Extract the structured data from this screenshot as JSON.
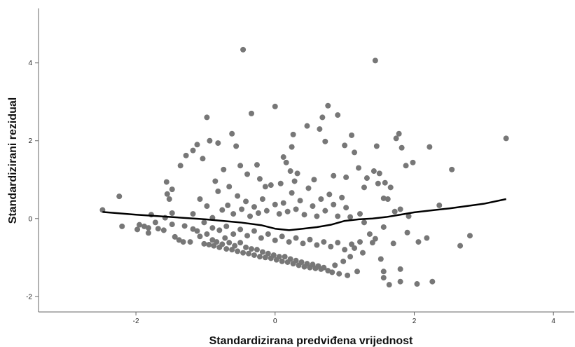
{
  "chart_data": {
    "type": "scatter",
    "title": "",
    "xlabel": "Standardizirana predviđena vrijednost",
    "ylabel": "Standardizirani rezidual",
    "xlim": [
      -3.4,
      4.3
    ],
    "ylim": [
      -2.4,
      5.4
    ],
    "x_ticks": [
      -2,
      0,
      2,
      4
    ],
    "x_tick_labels": [
      "-2",
      "0",
      "2",
      "4"
    ],
    "y_ticks": [
      -2,
      0,
      2,
      4
    ],
    "y_tick_labels": [
      "-2",
      "0",
      "2",
      "4"
    ],
    "grid": false,
    "point_color": "#777777",
    "line_color": "#000000",
    "series": [
      {
        "type": "scatter",
        "points": [
          [
            -2.48,
            0.22
          ],
          [
            -2.24,
            0.57
          ],
          [
            -2.2,
            -0.2
          ],
          [
            -1.95,
            -0.16
          ],
          [
            -1.98,
            -0.28
          ],
          [
            -1.88,
            -0.2
          ],
          [
            -1.82,
            -0.24
          ],
          [
            -1.78,
            0.1
          ],
          [
            -1.82,
            -0.37
          ],
          [
            -1.72,
            -0.1
          ],
          [
            -1.68,
            -0.26
          ],
          [
            -1.6,
            -0.3
          ],
          [
            -1.58,
            0.02
          ],
          [
            -1.55,
            0.63
          ],
          [
            -1.52,
            0.5
          ],
          [
            -1.48,
            0.14
          ],
          [
            -1.48,
            -0.15
          ],
          [
            -1.44,
            -0.47
          ],
          [
            -1.38,
            -0.55
          ],
          [
            -1.32,
            -0.6
          ],
          [
            -1.3,
            -0.19
          ],
          [
            -1.22,
            -0.6
          ],
          [
            -1.18,
            -0.27
          ],
          [
            -1.12,
            -0.32
          ],
          [
            -1.08,
            -0.46
          ],
          [
            -1.02,
            -0.65
          ],
          [
            -0.98,
            -0.4
          ],
          [
            -0.95,
            -0.67
          ],
          [
            -0.9,
            -0.55
          ],
          [
            -0.88,
            -0.7
          ],
          [
            -0.84,
            -0.6
          ],
          [
            -0.8,
            -0.74
          ],
          [
            -0.76,
            -0.66
          ],
          [
            -0.72,
            -0.5
          ],
          [
            -0.7,
            -0.78
          ],
          [
            -0.66,
            -0.62
          ],
          [
            -0.62,
            -0.8
          ],
          [
            -0.58,
            -0.7
          ],
          [
            -0.54,
            -0.84
          ],
          [
            -0.5,
            -0.62
          ],
          [
            -0.46,
            -0.88
          ],
          [
            -0.42,
            -0.74
          ],
          [
            -0.38,
            -0.9
          ],
          [
            -0.34,
            -0.78
          ],
          [
            -0.3,
            -0.94
          ],
          [
            -0.26,
            -0.8
          ],
          [
            -0.22,
            -0.98
          ],
          [
            -0.18,
            -0.86
          ],
          [
            -0.14,
            -1.0
          ],
          [
            -0.1,
            -0.9
          ],
          [
            -0.06,
            -1.02
          ],
          [
            -0.02,
            -0.94
          ],
          [
            0.02,
            -1.06
          ],
          [
            0.06,
            -0.98
          ],
          [
            0.1,
            -1.1
          ],
          [
            0.14,
            -0.98
          ],
          [
            0.18,
            -1.12
          ],
          [
            0.22,
            -1.04
          ],
          [
            0.26,
            -1.16
          ],
          [
            0.3,
            -1.08
          ],
          [
            0.34,
            -1.2
          ],
          [
            0.38,
            -1.12
          ],
          [
            0.42,
            -1.24
          ],
          [
            0.46,
            -1.16
          ],
          [
            0.5,
            -1.26
          ],
          [
            0.54,
            -1.18
          ],
          [
            0.58,
            -1.28
          ],
          [
            0.62,
            -1.22
          ],
          [
            0.66,
            -1.3
          ],
          [
            0.7,
            -1.26
          ],
          [
            0.76,
            -1.34
          ],
          [
            0.82,
            -1.38
          ],
          [
            0.86,
            -1.2
          ],
          [
            0.92,
            -1.42
          ],
          [
            0.98,
            -1.1
          ],
          [
            1.04,
            -1.46
          ],
          [
            1.08,
            -0.98
          ],
          [
            1.14,
            -0.76
          ],
          [
            1.18,
            -1.36
          ],
          [
            1.22,
            -0.6
          ],
          [
            -1.56,
            0.94
          ],
          [
            -1.48,
            0.75
          ],
          [
            -1.36,
            1.36
          ],
          [
            -1.28,
            1.62
          ],
          [
            -1.18,
            1.75
          ],
          [
            -1.12,
            1.9
          ],
          [
            -1.04,
            1.54
          ],
          [
            -0.98,
            2.6
          ],
          [
            -0.94,
            2.0
          ],
          [
            -0.82,
            1.94
          ],
          [
            -0.74,
            1.26
          ],
          [
            -0.62,
            2.18
          ],
          [
            -0.56,
            1.86
          ],
          [
            -0.5,
            1.36
          ],
          [
            -0.46,
            4.34
          ],
          [
            -0.34,
            2.7
          ],
          [
            -0.26,
            1.38
          ],
          [
            -0.22,
            1.02
          ],
          [
            0.0,
            2.88
          ],
          [
            0.12,
            1.58
          ],
          [
            0.16,
            1.44
          ],
          [
            0.22,
            1.22
          ],
          [
            0.24,
            1.84
          ],
          [
            0.26,
            2.16
          ],
          [
            0.32,
            1.16
          ],
          [
            0.46,
            2.38
          ],
          [
            0.64,
            2.3
          ],
          [
            0.68,
            2.6
          ],
          [
            0.72,
            1.98
          ],
          [
            0.76,
            2.9
          ],
          [
            0.9,
            2.66
          ],
          [
            1.0,
            1.88
          ],
          [
            1.1,
            2.14
          ],
          [
            1.14,
            1.7
          ],
          [
            1.2,
            1.3
          ],
          [
            1.28,
            0.8
          ],
          [
            1.32,
            1.04
          ],
          [
            1.42,
            1.22
          ],
          [
            1.44,
            4.06
          ],
          [
            1.46,
            1.86
          ],
          [
            1.5,
            1.16
          ],
          [
            1.58,
            0.92
          ],
          [
            1.66,
            0.8
          ],
          [
            1.74,
            2.06
          ],
          [
            1.78,
            2.18
          ],
          [
            1.82,
            1.82
          ],
          [
            1.88,
            1.36
          ],
          [
            1.98,
            1.44
          ],
          [
            2.22,
            1.84
          ],
          [
            2.54,
            1.26
          ],
          [
            3.32,
            2.06
          ],
          [
            1.48,
            0.9
          ],
          [
            1.56,
            0.52
          ],
          [
            1.62,
            0.5
          ],
          [
            1.72,
            0.18
          ],
          [
            1.8,
            0.24
          ],
          [
            1.92,
            0.06
          ],
          [
            2.36,
            0.34
          ],
          [
            2.66,
            -0.7
          ],
          [
            2.8,
            -0.44
          ],
          [
            2.18,
            -0.5
          ],
          [
            2.06,
            -0.6
          ],
          [
            1.9,
            -0.36
          ],
          [
            1.7,
            -0.64
          ],
          [
            1.56,
            -0.22
          ],
          [
            1.44,
            -0.52
          ],
          [
            1.4,
            -0.62
          ],
          [
            1.36,
            -0.4
          ],
          [
            1.28,
            -0.1
          ],
          [
            1.22,
            0.12
          ],
          [
            1.56,
            -1.36
          ],
          [
            1.56,
            -1.52
          ],
          [
            1.64,
            -1.7
          ],
          [
            1.8,
            -1.3
          ],
          [
            1.8,
            -1.62
          ],
          [
            2.04,
            -1.68
          ],
          [
            2.26,
            -1.62
          ],
          [
            1.52,
            -1.04
          ],
          [
            1.26,
            -0.88
          ],
          [
            1.1,
            -0.66
          ],
          [
            -1.18,
            0.12
          ],
          [
            -1.08,
            0.5
          ],
          [
            -0.98,
            0.32
          ],
          [
            -0.9,
            0.02
          ],
          [
            -0.82,
            0.7
          ],
          [
            -0.76,
            0.22
          ],
          [
            -0.68,
            0.34
          ],
          [
            -0.6,
            0.12
          ],
          [
            -0.54,
            0.58
          ],
          [
            -0.48,
            0.24
          ],
          [
            -0.42,
            0.44
          ],
          [
            -0.36,
            0.06
          ],
          [
            -0.3,
            0.3
          ],
          [
            -0.24,
            0.14
          ],
          [
            -0.18,
            0.5
          ],
          [
            -0.12,
            0.2
          ],
          [
            -0.06,
            0.86
          ],
          [
            0.0,
            0.36
          ],
          [
            0.06,
            0.12
          ],
          [
            0.12,
            0.4
          ],
          [
            0.18,
            0.18
          ],
          [
            0.24,
            0.66
          ],
          [
            0.3,
            0.24
          ],
          [
            0.36,
            0.46
          ],
          [
            0.42,
            0.1
          ],
          [
            0.48,
            0.78
          ],
          [
            0.54,
            0.32
          ],
          [
            0.6,
            0.06
          ],
          [
            0.66,
            0.5
          ],
          [
            0.72,
            0.2
          ],
          [
            0.78,
            0.62
          ],
          [
            0.84,
            0.36
          ],
          [
            0.9,
            0.06
          ],
          [
            0.96,
            0.54
          ],
          [
            1.02,
            0.28
          ],
          [
            1.08,
            0.04
          ],
          [
            -1.02,
            -0.1
          ],
          [
            -0.9,
            -0.24
          ],
          [
            -0.8,
            -0.3
          ],
          [
            -0.7,
            -0.2
          ],
          [
            -0.6,
            -0.4
          ],
          [
            -0.5,
            -0.28
          ],
          [
            -0.4,
            -0.44
          ],
          [
            -0.3,
            -0.32
          ],
          [
            -0.2,
            -0.5
          ],
          [
            -0.1,
            -0.4
          ],
          [
            0.0,
            -0.56
          ],
          [
            0.1,
            -0.46
          ],
          [
            0.2,
            -0.6
          ],
          [
            0.3,
            -0.5
          ],
          [
            0.4,
            -0.64
          ],
          [
            0.5,
            -0.54
          ],
          [
            0.6,
            -0.68
          ],
          [
            0.7,
            -0.6
          ],
          [
            0.8,
            -0.72
          ],
          [
            0.9,
            -0.62
          ],
          [
            1.0,
            -0.8
          ],
          [
            -0.86,
            0.96
          ],
          [
            -0.66,
            0.82
          ],
          [
            -0.4,
            1.14
          ],
          [
            -0.14,
            0.82
          ],
          [
            0.08,
            0.9
          ],
          [
            0.28,
            0.96
          ],
          [
            0.56,
            1.0
          ],
          [
            0.84,
            1.1
          ],
          [
            1.02,
            1.06
          ]
        ]
      },
      {
        "type": "line",
        "points": [
          [
            -2.48,
            0.17
          ],
          [
            -2.0,
            0.1
          ],
          [
            -1.5,
            0.04
          ],
          [
            -1.0,
            -0.02
          ],
          [
            -0.5,
            -0.1
          ],
          [
            -0.2,
            -0.17
          ],
          [
            0.0,
            -0.26
          ],
          [
            0.2,
            -0.3
          ],
          [
            0.4,
            -0.26
          ],
          [
            0.6,
            -0.22
          ],
          [
            0.8,
            -0.16
          ],
          [
            1.0,
            -0.06
          ],
          [
            1.2,
            -0.02
          ],
          [
            1.4,
            0.0
          ],
          [
            1.6,
            0.04
          ],
          [
            1.8,
            0.1
          ],
          [
            2.0,
            0.16
          ],
          [
            2.5,
            0.26
          ],
          [
            3.0,
            0.38
          ],
          [
            3.32,
            0.5
          ]
        ]
      }
    ]
  }
}
